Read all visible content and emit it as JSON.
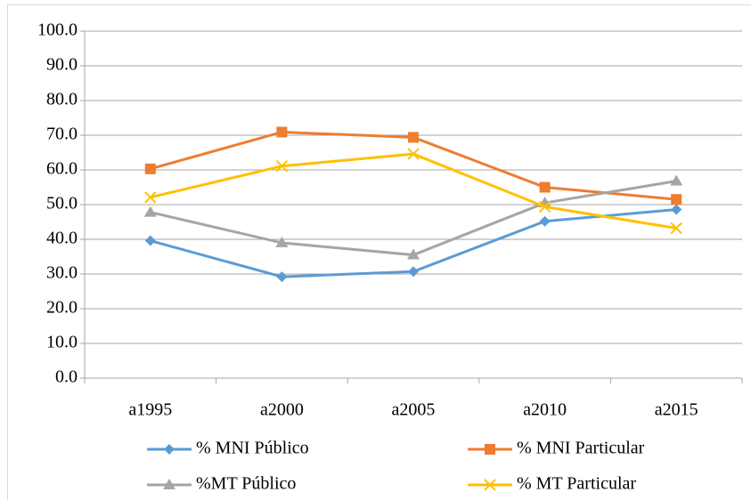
{
  "chart_data": {
    "type": "line",
    "categories": [
      "a1995",
      "a2000",
      "a2005",
      "a2010",
      "a2015"
    ],
    "series": [
      {
        "name": "% MNI Público",
        "color": "#5b9bd5",
        "marker": "diamond",
        "values": [
          39.6,
          29.2,
          30.7,
          45.2,
          48.6
        ]
      },
      {
        "name": "% MNI Particular",
        "color": "#ed7d31",
        "marker": "square",
        "values": [
          60.3,
          70.9,
          69.4,
          55.0,
          51.5
        ]
      },
      {
        "name": "%MT Público",
        "color": "#a5a5a5",
        "marker": "triangle",
        "values": [
          47.8,
          39.0,
          35.5,
          50.5,
          56.8
        ]
      },
      {
        "name": "% MT Particular",
        "color": "#ffc000",
        "marker": "x",
        "values": [
          52.1,
          61.1,
          64.6,
          49.4,
          43.2
        ]
      }
    ],
    "ylim": [
      0,
      100
    ],
    "yticks": [
      {
        "value": 0,
        "label": "0.0"
      },
      {
        "value": 10,
        "label": "10.0"
      },
      {
        "value": 20,
        "label": "20.0"
      },
      {
        "value": 30,
        "label": "30.0"
      },
      {
        "value": 40,
        "label": "40.0"
      },
      {
        "value": 50,
        "label": "50.0"
      },
      {
        "value": 60,
        "label": "60.0"
      },
      {
        "value": 70,
        "label": "70.0"
      },
      {
        "value": 80,
        "label": "80.0"
      },
      {
        "value": 90,
        "label": "90.0"
      },
      {
        "value": 100,
        "label": "100.0"
      }
    ],
    "grid": true,
    "legend": "bottom"
  }
}
